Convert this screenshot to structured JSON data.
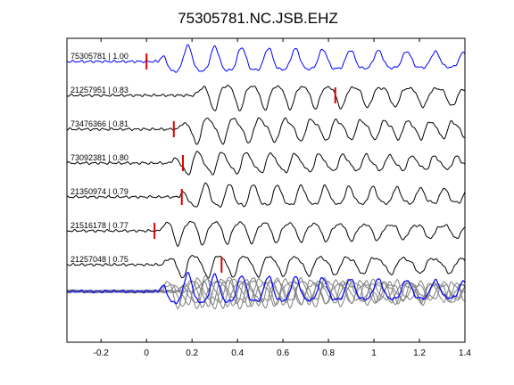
{
  "chart_data": {
    "type": "line",
    "title": "75305781.NC.JSB.EHZ",
    "xlabel": "",
    "ylabel": "",
    "xlim": [
      -0.35,
      1.4
    ],
    "xticks": [
      -0.2,
      0,
      0.2,
      0.4,
      0.6,
      0.8,
      1,
      1.2,
      1.4
    ],
    "xtick_labels": [
      "-0.2",
      "0",
      "0.2",
      "0.4",
      "0.6",
      "0.8",
      "1",
      "1.2",
      "1.4"
    ],
    "grid": false,
    "colors": {
      "reference": "#0000ff",
      "trace": "#000000",
      "pick": "#dd0000",
      "stack": "#808080"
    },
    "traces": [
      {
        "label": "75305781 | 1.00",
        "pick": 0.0,
        "color": "#0000ff",
        "onset": 0.05,
        "period": 0.12,
        "amp": 1.0,
        "seed": 1,
        "decay": 0.45
      },
      {
        "label": "21257951 | 0.83",
        "pick": 0.83,
        "color": "#000000",
        "onset": 0.2,
        "period": 0.115,
        "amp": 0.95,
        "seed": 2,
        "decay": 0.35
      },
      {
        "label": "73476366 | 0.81",
        "pick": 0.12,
        "color": "#000000",
        "onset": 0.13,
        "period": 0.11,
        "amp": 0.95,
        "seed": 3,
        "decay": 0.4
      },
      {
        "label": "73092381 | 0.80",
        "pick": 0.16,
        "color": "#000000",
        "onset": 0.1,
        "period": 0.105,
        "amp": 0.85,
        "seed": 4,
        "decay": 0.5
      },
      {
        "label": "21350974 | 0.79",
        "pick": 0.155,
        "color": "#000000",
        "onset": 0.14,
        "period": 0.105,
        "amp": 0.9,
        "seed": 5,
        "decay": 0.45
      },
      {
        "label": "21516178 | 0.77",
        "pick": 0.035,
        "color": "#000000",
        "onset": 0.04,
        "period": 0.11,
        "amp": 0.9,
        "seed": 6,
        "decay": 0.5
      },
      {
        "label": "21257048 | 0.75",
        "pick": 0.33,
        "color": "#000000",
        "onset": 0.06,
        "period": 0.115,
        "amp": 0.85,
        "seed": 7,
        "decay": 0.4
      }
    ],
    "stack": {
      "count": 7,
      "color": "#808080",
      "reference_color": "#0000ff"
    }
  }
}
